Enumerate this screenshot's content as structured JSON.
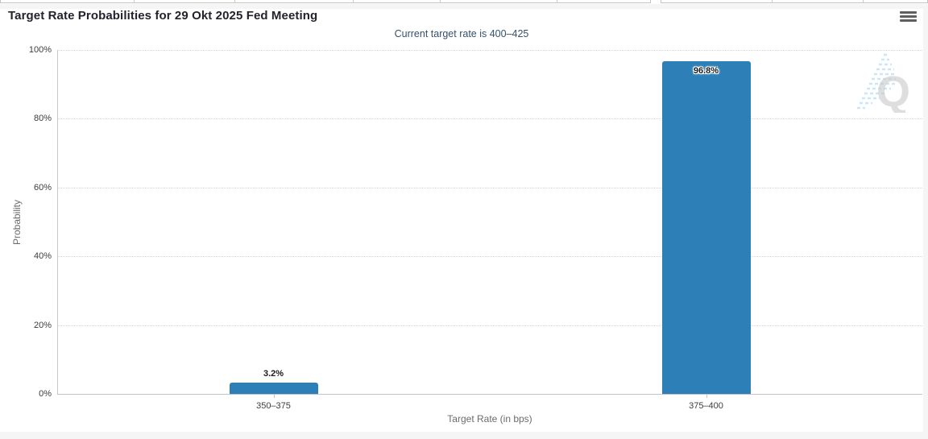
{
  "chart_data": {
    "type": "bar",
    "title": "Target Rate Probabilities for 29 Okt 2025 Fed Meeting",
    "subtitle": "Current target rate is 400–425",
    "categories": [
      "350–375",
      "375–400"
    ],
    "values": [
      3.2,
      96.8
    ],
    "value_labels": [
      "3.2%",
      "96.8%"
    ],
    "xlabel": "Target Rate (in bps)",
    "ylabel": "Probability",
    "ylim": [
      0,
      100
    ],
    "yticks": [
      0,
      20,
      40,
      60,
      80,
      100
    ],
    "ytick_labels": [
      "0%",
      "20%",
      "40%",
      "60%",
      "80%",
      "100%"
    ],
    "grid": "dotted-horizontal",
    "legend": "none",
    "bar_color": "#2d7fb8"
  },
  "toolbar": {
    "context_menu_icon": "hamburger-menu-icon"
  },
  "watermark": {
    "letter": "Q"
  },
  "colors": {
    "bar": "#2d7fb8",
    "title_text": "#23232e",
    "subtitle_text": "#35506b",
    "axis_text": "#3c3c3c",
    "axis_title_text": "#6b6b6b",
    "gridline": "#d5d5d5",
    "page_band": "#f5f5f5"
  }
}
